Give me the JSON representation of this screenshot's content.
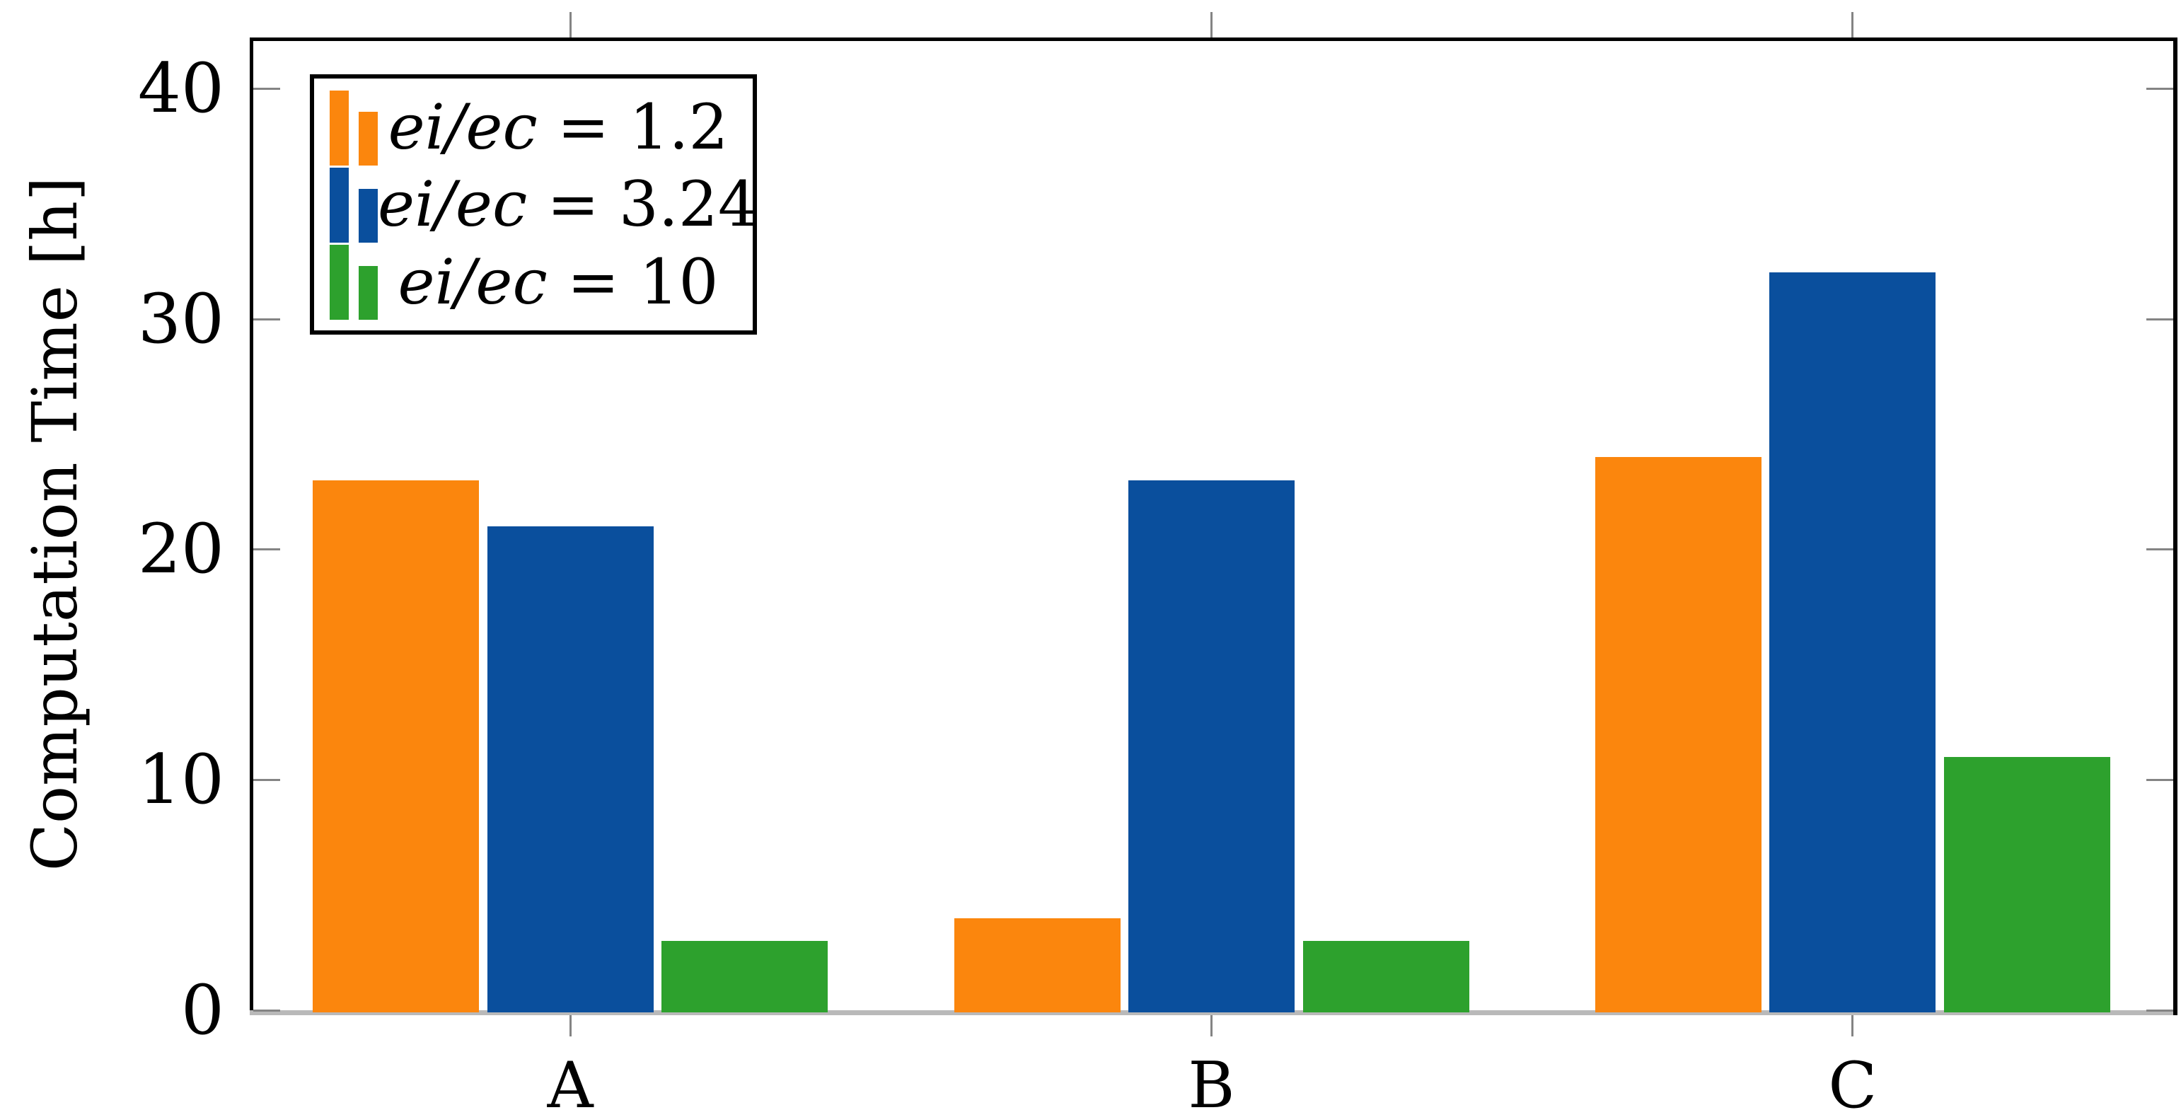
{
  "chart_data": {
    "type": "bar",
    "title": "",
    "categories": [
      "A",
      "B",
      "C"
    ],
    "series": [
      {
        "name": "ei/ec = 1.2",
        "color": "#fb860d",
        "values": [
          23,
          4,
          24
        ]
      },
      {
        "name": "ei/ec = 3.24",
        "color": "#0a4f9d",
        "values": [
          21,
          23,
          32
        ]
      },
      {
        "name": "ei/ec = 10",
        "color": "#2da12d",
        "values": [
          3,
          3,
          11
        ]
      }
    ],
    "xlabel": "",
    "ylabel": "Computation Time [h]",
    "yticks": [
      0,
      10,
      20,
      30,
      40
    ],
    "ylim": [
      0,
      42.2
    ],
    "grid": false,
    "legend_position": "top-left",
    "legend_border": true,
    "axis_colors": {
      "frame": "#000000",
      "baseline": "#b9b9b9",
      "tick": "#848484",
      "text": "#000000"
    }
  }
}
